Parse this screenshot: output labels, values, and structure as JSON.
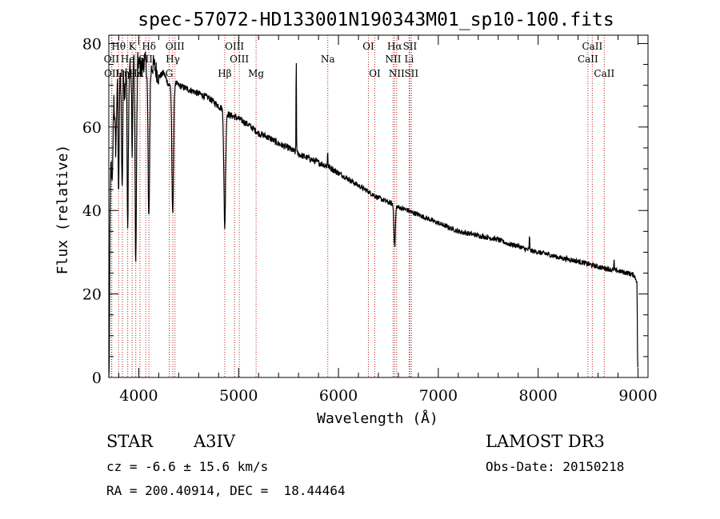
{
  "chart_data": {
    "type": "line",
    "title": "spec-57072-HD133001N190343M01_sp10-100.fits",
    "xlabel": "Wavelength (Å)",
    "ylabel": "Flux (relative)",
    "xlim": [
      3700,
      9100
    ],
    "ylim": [
      0,
      82
    ],
    "x_ticks": [
      4000,
      5000,
      6000,
      7000,
      8000,
      9000
    ],
    "y_ticks": [
      0,
      20,
      40,
      60,
      80
    ],
    "grid": false,
    "spectrum_anchors": [
      [
        3700,
        0
      ],
      [
        3705,
        3
      ],
      [
        3712,
        38
      ],
      [
        3722,
        52
      ],
      [
        3735,
        45
      ],
      [
        3750,
        68
      ],
      [
        3770,
        54
      ],
      [
        3785,
        72
      ],
      [
        3798,
        60
      ],
      [
        3812,
        74
      ],
      [
        3830,
        62
      ],
      [
        3845,
        75
      ],
      [
        3860,
        66
      ],
      [
        3875,
        76
      ],
      [
        3890,
        62
      ],
      [
        3910,
        76
      ],
      [
        3935,
        64
      ],
      [
        3950,
        78
      ],
      [
        3970,
        62
      ],
      [
        3990,
        76
      ],
      [
        4020,
        74
      ],
      [
        4060,
        76
      ],
      [
        4101,
        73
      ],
      [
        4150,
        75
      ],
      [
        4200,
        72
      ],
      [
        4250,
        73
      ],
      [
        4300,
        70
      ],
      [
        4340,
        71
      ],
      [
        4400,
        70
      ],
      [
        4500,
        69
      ],
      [
        4600,
        68
      ],
      [
        4700,
        67
      ],
      [
        4800,
        65
      ],
      [
        4861,
        64
      ],
      [
        4900,
        63
      ],
      [
        5000,
        62
      ],
      [
        5100,
        60.5
      ],
      [
        5200,
        58.5
      ],
      [
        5300,
        57.5
      ],
      [
        5400,
        56
      ],
      [
        5500,
        55
      ],
      [
        5600,
        53.5
      ],
      [
        5700,
        52.5
      ],
      [
        5800,
        51.5
      ],
      [
        5900,
        50.5
      ],
      [
        6000,
        49
      ],
      [
        6100,
        47.5
      ],
      [
        6200,
        46
      ],
      [
        6300,
        44.5
      ],
      [
        6400,
        43
      ],
      [
        6500,
        42
      ],
      [
        6600,
        40.8
      ],
      [
        6700,
        40
      ],
      [
        6800,
        39
      ],
      [
        6900,
        38
      ],
      [
        7000,
        37
      ],
      [
        7100,
        36
      ],
      [
        7200,
        35
      ],
      [
        7300,
        34.5
      ],
      [
        7400,
        34
      ],
      [
        7500,
        33.5
      ],
      [
        7600,
        33
      ],
      [
        7700,
        32
      ],
      [
        7800,
        31.5
      ],
      [
        7900,
        30.5
      ],
      [
        8000,
        30
      ],
      [
        8100,
        29.5
      ],
      [
        8200,
        28.8
      ],
      [
        8300,
        28.3
      ],
      [
        8400,
        27.8
      ],
      [
        8500,
        27.2
      ],
      [
        8600,
        26.5
      ],
      [
        8700,
        26
      ],
      [
        8800,
        25.5
      ],
      [
        8900,
        25
      ],
      [
        8960,
        24.5
      ],
      [
        8990,
        23
      ],
      [
        8995,
        6
      ],
      [
        9000,
        0
      ]
    ],
    "absorption_features": [
      {
        "center": 3798,
        "depth": 18,
        "width": 6
      },
      {
        "center": 3835,
        "depth": 22,
        "width": 7
      },
      {
        "center": 3889,
        "depth": 26,
        "width": 8
      },
      {
        "center": 3934,
        "depth": 12,
        "width": 4
      },
      {
        "center": 3970,
        "depth": 35,
        "width": 10
      },
      {
        "center": 4101,
        "depth": 36,
        "width": 11
      },
      {
        "center": 4340,
        "depth": 32,
        "width": 12
      },
      {
        "center": 4861,
        "depth": 28,
        "width": 12
      },
      {
        "center": 6563,
        "depth": 10,
        "width": 10
      }
    ],
    "emission_features": [
      {
        "center": 5577,
        "height": 24,
        "width": 3
      },
      {
        "center": 5892,
        "height": 4,
        "width": 3
      },
      {
        "center": 7913,
        "height": 4,
        "width": 3
      },
      {
        "center": 8760,
        "height": 2.5,
        "width": 3
      }
    ],
    "spectral_lines": [
      {
        "label": "Hθ",
        "wavelength": 3798,
        "row": 1
      },
      {
        "label": "OII",
        "wavelength": 3727,
        "row": 2
      },
      {
        "label": "OII",
        "wavelength": 3730,
        "row": 3
      },
      {
        "label": "Hη",
        "wavelength": 3836,
        "row": 3
      },
      {
        "label": "He",
        "wavelength": 3889,
        "row": 2
      },
      {
        "label": "K",
        "wavelength": 3934,
        "row": 1
      },
      {
        "label": "Hε",
        "wavelength": 3970,
        "row": 3
      },
      {
        "label": "SII",
        "wavelength": 4070,
        "row": 2
      },
      {
        "label": "Hδ",
        "wavelength": 4102,
        "row": 1
      },
      {
        "label": "H",
        "wavelength": 4012,
        "row": 3
      },
      {
        "label": "OIII",
        "wavelength": 4363,
        "row": 1
      },
      {
        "label": "Hγ",
        "wavelength": 4341,
        "row": 2
      },
      {
        "label": "G",
        "wavelength": 4305,
        "row": 3
      },
      {
        "label": "OIII",
        "wavelength": 4959,
        "row": 1
      },
      {
        "label": "OIII",
        "wavelength": 5007,
        "row": 2
      },
      {
        "label": "Hβ",
        "wavelength": 4861,
        "row": 3
      },
      {
        "label": "Mg",
        "wavelength": 5175,
        "row": 3
      },
      {
        "label": "Na",
        "wavelength": 5893,
        "row": 2
      },
      {
        "label": "OI",
        "wavelength": 6300,
        "row": 1
      },
      {
        "label": "OI",
        "wavelength": 6364,
        "row": 3
      },
      {
        "label": "Hα",
        "wavelength": 6563,
        "row": 1
      },
      {
        "label": "SII",
        "wavelength": 6716,
        "row": 1
      },
      {
        "label": "NII",
        "wavelength": 6548,
        "row": 2
      },
      {
        "label": "Li",
        "wavelength": 6708,
        "row": 2
      },
      {
        "label": "NII",
        "wavelength": 6583,
        "row": 3
      },
      {
        "label": "SII",
        "wavelength": 6731,
        "row": 3
      },
      {
        "label": "CaII",
        "wavelength": 8542,
        "row": 1
      },
      {
        "label": "CaII",
        "wavelength": 8498,
        "row": 2
      },
      {
        "label": "CaII",
        "wavelength": 8662,
        "row": 3
      }
    ]
  },
  "info": {
    "object_class": "STAR",
    "subclass": "A3IV",
    "survey": "LAMOST DR3",
    "redshift": "cz = -6.6 ± 15.6 km/s",
    "obs_date": "Obs-Date: 20150218",
    "coords": "RA = 200.40914, DEC =  18.44464"
  },
  "colors": {
    "spectrum": "#000000",
    "line_markers": "#b22222",
    "axes": "#000000",
    "background": "#ffffff"
  }
}
